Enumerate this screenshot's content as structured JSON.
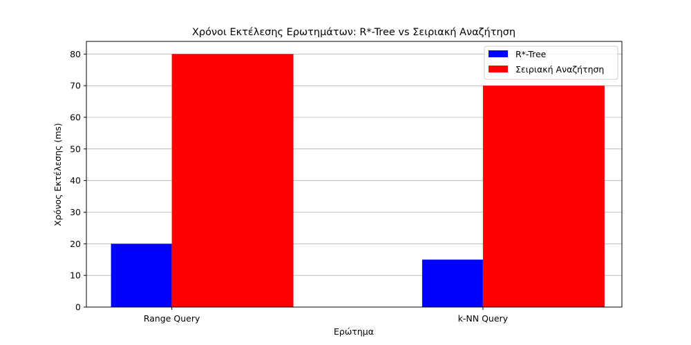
{
  "chart_data": {
    "type": "bar",
    "title": "Χρόνοι Εκτέλεσης Ερωτημάτων: R*-Tree vs Σειριακή Αναζήτηση",
    "xlabel": "Ερώτημα",
    "ylabel": "Χρόνος Εκτέλεσης (ms)",
    "categories": [
      "Range Query",
      "k-NN Query"
    ],
    "series": [
      {
        "name": "R*-Tree",
        "values": [
          20,
          15
        ],
        "color": "#0000ff"
      },
      {
        "name": "Σειριακή Αναζήτηση",
        "values": [
          80,
          70
        ],
        "color": "#ff0000"
      }
    ],
    "ylim": [
      0,
      84
    ],
    "yticks": [
      0,
      10,
      20,
      30,
      40,
      50,
      60,
      70,
      80
    ],
    "grid": "horizontal",
    "legend_position": "top-right"
  }
}
